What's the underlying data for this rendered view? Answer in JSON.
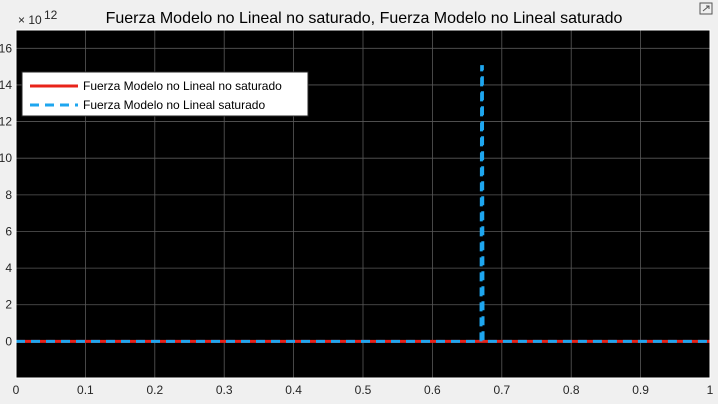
{
  "chart_data": {
    "type": "line",
    "title": "Fuerza Modelo no Lineal no saturado, Fuerza Modelo no Lineal saturado",
    "xlabel": "",
    "ylabel": "",
    "exponent_base": "× 10",
    "exponent_power": "12",
    "xlim": [
      0,
      1
    ],
    "ylim": [
      -2000000000000.0,
      17000000000000.0
    ],
    "xticks": [
      0,
      0.1,
      0.2,
      0.3,
      0.4,
      0.5,
      0.6,
      0.7,
      0.8,
      0.9,
      1
    ],
    "xtick_labels": [
      "0",
      "0.1",
      "0.2",
      "0.3",
      "0.4",
      "0.5",
      "0.6",
      "0.7",
      "0.8",
      "0.9",
      "1"
    ],
    "yticks": [
      0,
      2000000000000.0,
      4000000000000.0,
      6000000000000.0,
      8000000000000.0,
      10000000000000.0,
      12000000000000.0,
      14000000000000.0,
      16000000000000.0
    ],
    "ytick_labels": [
      "0",
      "2",
      "4",
      "6",
      "8",
      "10",
      "12",
      "14",
      "16"
    ],
    "grid": true,
    "legend_position": "top-left",
    "background": "#000000",
    "grid_color": "#595959",
    "series": [
      {
        "name": "Fuerza Modelo no Lineal no saturado",
        "color": "#e8231a",
        "style": "solid",
        "x": [
          0,
          1
        ],
        "y": [
          0,
          0
        ]
      },
      {
        "name": "Fuerza Modelo no Lineal saturado",
        "color": "#1ea6ef",
        "style": "dashed",
        "x": [
          0,
          0.67,
          0.671,
          0.672,
          0.673,
          1
        ],
        "y": [
          0,
          0,
          15000000000000.0,
          15000000000000.0,
          0,
          0
        ]
      }
    ]
  },
  "toolbar": {
    "expand_icon": "expand-icon"
  }
}
